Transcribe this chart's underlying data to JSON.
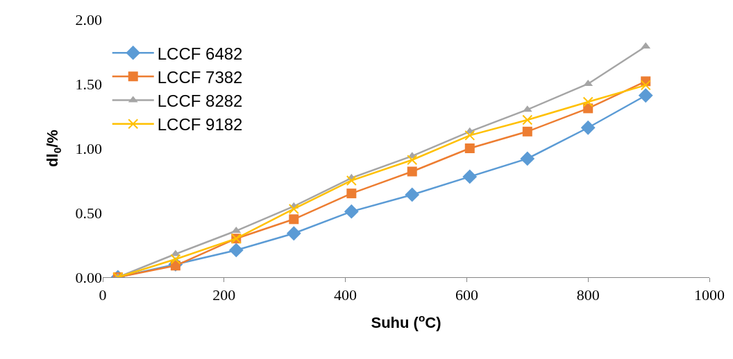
{
  "chart_data": {
    "type": "line",
    "xlabel": "Suhu ($^{o}$C)",
    "ylabel": "dl$_{0}$/%",
    "x": [
      25,
      120,
      220,
      315,
      410,
      510,
      605,
      700,
      800,
      895
    ],
    "series": [
      {
        "name": "LCCF 6482",
        "color": "#5b9bd5",
        "marker": "diamond",
        "values": [
          0,
          0.1,
          0.21,
          0.34,
          0.51,
          0.64,
          0.78,
          0.92,
          1.16,
          1.41
        ]
      },
      {
        "name": "LCCF 7382",
        "color": "#ed7d31",
        "marker": "square",
        "values": [
          0,
          0.09,
          0.3,
          0.45,
          0.65,
          0.82,
          1.0,
          1.13,
          1.31,
          1.52
        ]
      },
      {
        "name": "LCCF 8282",
        "color": "#a5a5a5",
        "marker": "triangle",
        "values": [
          0,
          0.18,
          0.36,
          0.55,
          0.77,
          0.94,
          1.13,
          1.3,
          1.5,
          1.79
        ]
      },
      {
        "name": "LCCF 9182",
        "color": "#ffc000",
        "marker": "cross",
        "values": [
          0,
          0.14,
          0.3,
          0.53,
          0.75,
          0.91,
          1.1,
          1.22,
          1.36,
          1.49
        ]
      }
    ],
    "xlim": [
      0,
      1000
    ],
    "xticks": [
      0,
      200,
      400,
      600,
      800,
      1000
    ],
    "ylim": [
      0,
      2
    ],
    "yticks": [
      {
        "value": 0,
        "label": "0.00"
      },
      {
        "value": 0.5,
        "label": "0.50"
      },
      {
        "value": 1,
        "label": "1.00"
      },
      {
        "value": 1.5,
        "label": "1.50"
      },
      {
        "value": 2,
        "label": "2.00"
      }
    ],
    "grid": false,
    "legend": "top left",
    "line_style": "solid"
  }
}
